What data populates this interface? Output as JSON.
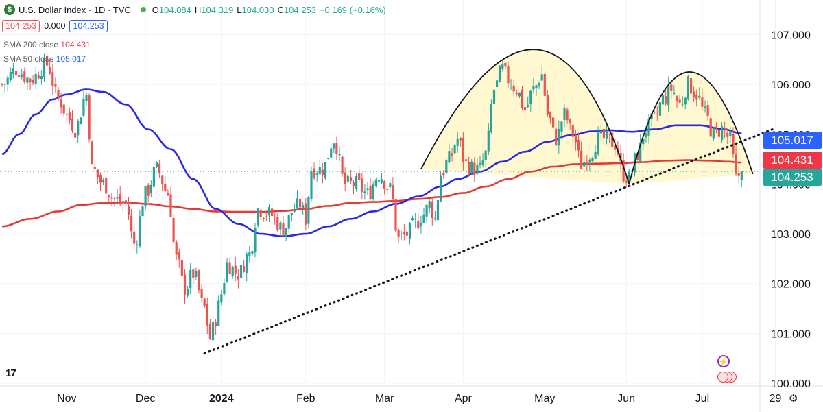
{
  "header": {
    "symbol_title": "U.S. Dollar Index · 1D · TVC",
    "logo_glyph": "$",
    "ohlc": {
      "o_label": "O",
      "o": "104.084",
      "h_label": "H",
      "h": "104.319",
      "l_label": "L",
      "l": "104.030",
      "c_label": "C",
      "c": "104.253",
      "change": "+0.169 (+0.16%)"
    },
    "bid": "104.253",
    "spread": "0.000",
    "ask": "104.253"
  },
  "indicators": {
    "sma200": {
      "label": "SMA 200 close",
      "value": "104.431",
      "color": "#e53935"
    },
    "sma50": {
      "label": "SMA 50 close",
      "value": "105.017",
      "color": "#2929e0"
    }
  },
  "chart_data": {
    "type": "candlestick",
    "ylim": [
      100.0,
      107.6
    ],
    "y_ticks": [
      "100.000",
      "101.000",
      "102.000",
      "103.000",
      "104.000",
      "105.000",
      "106.000",
      "107.000"
    ],
    "x_ticks": [
      {
        "label": "Nov",
        "bold": false
      },
      {
        "label": "Dec",
        "bold": false
      },
      {
        "label": "2024",
        "bold": true
      },
      {
        "label": "Feb",
        "bold": false
      },
      {
        "label": "Mar",
        "bold": false
      },
      {
        "label": "Apr",
        "bold": false
      },
      {
        "label": "May",
        "bold": false
      },
      {
        "label": "Jun",
        "bold": false
      },
      {
        "label": "Jul",
        "bold": false
      },
      {
        "label": "29",
        "bold": false
      }
    ],
    "x_tick_index": [
      23,
      51,
      78,
      108,
      136,
      164,
      193,
      222,
      249,
      275
    ],
    "price_labels": [
      {
        "text": "105.017",
        "value": 105.017,
        "color": "#2962ff"
      },
      {
        "text": "104.431",
        "value": 104.431,
        "color": "#f23645"
      },
      {
        "text": "104.253",
        "value": 104.253,
        "color": "#26a69a"
      }
    ],
    "last_price": 104.253,
    "candle_colors": {
      "up": "#26a69a",
      "down": "#ef5350"
    },
    "closes_anchor": [
      [
        0,
        106.0
      ],
      [
        5,
        106.3
      ],
      [
        10,
        106.1
      ],
      [
        16,
        106.4
      ],
      [
        20,
        105.7
      ],
      [
        24,
        105.3
      ],
      [
        26,
        105.1
      ],
      [
        30,
        105.8
      ],
      [
        32,
        104.3
      ],
      [
        36,
        104.0
      ],
      [
        40,
        103.7
      ],
      [
        44,
        103.6
      ],
      [
        47,
        102.8
      ],
      [
        51,
        103.8
      ],
      [
        55,
        104.3
      ],
      [
        59,
        103.8
      ],
      [
        62,
        102.5
      ],
      [
        65,
        101.9
      ],
      [
        68,
        102.2
      ],
      [
        72,
        101.5
      ],
      [
        74,
        100.9
      ],
      [
        76,
        101.3
      ],
      [
        78,
        101.8
      ],
      [
        80,
        102.4
      ],
      [
        84,
        102.2
      ],
      [
        88,
        102.6
      ],
      [
        91,
        103.5
      ],
      [
        95,
        103.4
      ],
      [
        100,
        103.1
      ],
      [
        104,
        103.5
      ],
      [
        106,
        103.6
      ],
      [
        108,
        103.3
      ],
      [
        110,
        104.3
      ],
      [
        114,
        104.3
      ],
      [
        118,
        104.9
      ],
      [
        122,
        104.0
      ],
      [
        126,
        104.0
      ],
      [
        130,
        103.8
      ],
      [
        134,
        104.2
      ],
      [
        138,
        103.9
      ],
      [
        141,
        102.9
      ],
      [
        144,
        103.0
      ],
      [
        147,
        103.2
      ],
      [
        150,
        103.4
      ],
      [
        152,
        103.6
      ],
      [
        154,
        103.3
      ],
      [
        156,
        104.2
      ],
      [
        159,
        104.5
      ],
      [
        162,
        104.9
      ],
      [
        165,
        104.4
      ],
      [
        168,
        104.3
      ],
      [
        170,
        104.3
      ],
      [
        172,
        104.6
      ],
      [
        175,
        105.9
      ],
      [
        178,
        106.3
      ],
      [
        180,
        106.1
      ],
      [
        183,
        105.9
      ],
      [
        186,
        105.5
      ],
      [
        189,
        105.9
      ],
      [
        192,
        106.2
      ],
      [
        194,
        105.4
      ],
      [
        197,
        104.9
      ],
      [
        200,
        105.4
      ],
      [
        203,
        105.0
      ],
      [
        206,
        104.4
      ],
      [
        209,
        104.6
      ],
      [
        212,
        104.9
      ],
      [
        215,
        104.9
      ],
      [
        218,
        104.8
      ],
      [
        221,
        104.2
      ],
      [
        223,
        104.1
      ],
      [
        226,
        104.6
      ],
      [
        229,
        105.1
      ],
      [
        232,
        105.3
      ],
      [
        235,
        105.7
      ],
      [
        238,
        105.9
      ],
      [
        241,
        105.6
      ],
      [
        244,
        106.0
      ],
      [
        247,
        105.8
      ],
      [
        250,
        105.4
      ],
      [
        253,
        105.0
      ],
      [
        256,
        105.1
      ],
      [
        259,
        104.9
      ],
      [
        261,
        104.1
      ],
      [
        263,
        104.253
      ]
    ],
    "sma50_anchor": [
      [
        0,
        104.6
      ],
      [
        6,
        105.0
      ],
      [
        12,
        105.4
      ],
      [
        18,
        105.7
      ],
      [
        23,
        105.8
      ],
      [
        30,
        105.9
      ],
      [
        36,
        105.85
      ],
      [
        44,
        105.6
      ],
      [
        52,
        105.1
      ],
      [
        60,
        104.7
      ],
      [
        68,
        104.1
      ],
      [
        76,
        103.5
      ],
      [
        84,
        103.2
      ],
      [
        92,
        103.0
      ],
      [
        100,
        102.95
      ],
      [
        108,
        103.0
      ],
      [
        116,
        103.15
      ],
      [
        124,
        103.3
      ],
      [
        132,
        103.45
      ],
      [
        140,
        103.6
      ],
      [
        148,
        103.75
      ],
      [
        156,
        103.95
      ],
      [
        162,
        104.1
      ],
      [
        170,
        104.25
      ],
      [
        178,
        104.45
      ],
      [
        186,
        104.65
      ],
      [
        194,
        104.85
      ],
      [
        202,
        104.98
      ],
      [
        210,
        105.06
      ],
      [
        216,
        105.08
      ],
      [
        224,
        105.05
      ],
      [
        232,
        105.1
      ],
      [
        240,
        105.18
      ],
      [
        248,
        105.18
      ],
      [
        256,
        105.11
      ],
      [
        263,
        105.017
      ]
    ],
    "sma200_anchor": [
      [
        0,
        103.15
      ],
      [
        10,
        103.3
      ],
      [
        20,
        103.45
      ],
      [
        28,
        103.58
      ],
      [
        36,
        103.62
      ],
      [
        44,
        103.63
      ],
      [
        52,
        103.6
      ],
      [
        60,
        103.55
      ],
      [
        68,
        103.5
      ],
      [
        76,
        103.45
      ],
      [
        84,
        103.44
      ],
      [
        92,
        103.44
      ],
      [
        100,
        103.46
      ],
      [
        108,
        103.5
      ],
      [
        116,
        103.56
      ],
      [
        124,
        103.62
      ],
      [
        132,
        103.64
      ],
      [
        140,
        103.66
      ],
      [
        148,
        103.7
      ],
      [
        156,
        103.74
      ],
      [
        164,
        103.82
      ],
      [
        172,
        103.95
      ],
      [
        180,
        104.1
      ],
      [
        188,
        104.25
      ],
      [
        196,
        104.35
      ],
      [
        204,
        104.4
      ],
      [
        212,
        104.41
      ],
      [
        220,
        104.42
      ],
      [
        228,
        104.44
      ],
      [
        236,
        104.47
      ],
      [
        244,
        104.48
      ],
      [
        252,
        104.47
      ],
      [
        258,
        104.45
      ],
      [
        263,
        104.431
      ]
    ],
    "trendline": {
      "style": "dotted",
      "from": [
        72,
        100.6
      ],
      "to": [
        274,
        105.1
      ]
    },
    "annotations": [
      {
        "type": "arc",
        "from": [
          149,
          104.3
        ],
        "peak": [
          190,
          106.7
        ],
        "to": [
          223,
          104.0
        ]
      },
      {
        "type": "arc",
        "from": [
          223,
          104.0
        ],
        "peak": [
          244,
          106.25
        ],
        "to": [
          267,
          104.2
        ]
      }
    ]
  },
  "footer": {
    "tv_logo": "17",
    "settings_icon": "⚙"
  }
}
